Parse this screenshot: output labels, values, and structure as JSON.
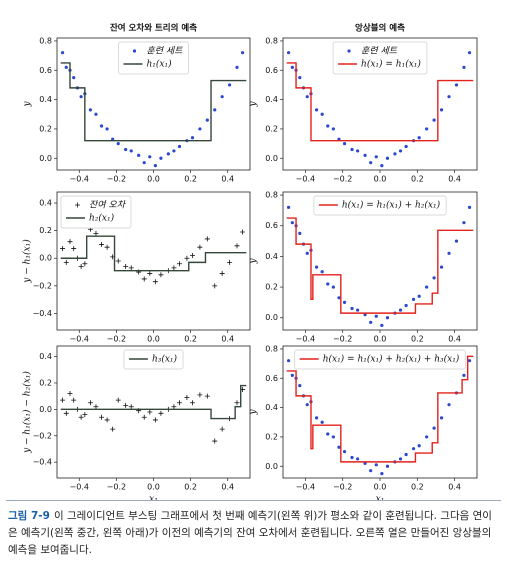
{
  "charts": [
    {
      "chart_data": {
        "type": "scatter",
        "title": "잔여 오차와 트리의 예측",
        "ylabel": "y",
        "legend": "upper center",
        "xlim": [
          -0.52,
          0.52
        ],
        "ylim": [
          -0.08,
          0.82
        ],
        "xticks": [
          {
            "value": -0.4,
            "label": "−0.4"
          },
          {
            "value": -0.2,
            "label": "−0.2"
          },
          {
            "value": 0,
            "label": "0.0"
          },
          0.2,
          0.4
        ],
        "yticks": [
          {
            "value": 0,
            "label": "0.0"
          },
          0.2,
          0.4,
          0.6,
          0.8
        ],
        "series": [
          {
            "name": "훈련 세트",
            "color": "#2a47d0",
            "marker": "o",
            "x": [
              -0.49,
              -0.47,
              -0.45,
              -0.43,
              -0.41,
              -0.39,
              -0.37,
              -0.34,
              -0.31,
              -0.28,
              -0.25,
              -0.22,
              -0.19,
              -0.15,
              -0.12,
              -0.08,
              -0.05,
              -0.02,
              0.01,
              0.04,
              0.08,
              0.11,
              0.14,
              0.18,
              0.21,
              0.25,
              0.29,
              0.33,
              0.37,
              0.41,
              0.45,
              0.48
            ],
            "values": [
              0.72,
              0.62,
              0.6,
              0.55,
              0.48,
              0.42,
              0.44,
              0.33,
              0.3,
              0.22,
              0.2,
              0.13,
              0.1,
              0.06,
              0.05,
              0.02,
              -0.03,
              0.01,
              -0.05,
              0.0,
              0.03,
              0.05,
              0.08,
              0.12,
              0.14,
              0.2,
              0.26,
              0.33,
              0.42,
              0.5,
              0.62,
              0.72
            ]
          },
          {
            "name": "h₁(x₁)",
            "color": "#33473a",
            "x": [
              -0.5,
              -0.45,
              -0.45,
              -0.37,
              -0.37,
              0.31,
              0.31,
              0.5
            ],
            "values": [
              0.65,
              0.65,
              0.48,
              0.48,
              0.12,
              0.12,
              0.53,
              0.53
            ]
          }
        ]
      }
    },
    {
      "chart_data": {
        "type": "scatter",
        "title": "앙상블의 예측",
        "ylabel": "y",
        "legend": "upper center",
        "xlim": [
          -0.52,
          0.52
        ],
        "ylim": [
          -0.08,
          0.82
        ],
        "xticks": [
          {
            "value": -0.4,
            "label": "−0.4"
          },
          {
            "value": -0.2,
            "label": "−0.2"
          },
          {
            "value": 0,
            "label": "0.0"
          },
          0.2,
          0.4
        ],
        "yticks": [
          {
            "value": 0,
            "label": "0.0"
          },
          0.2,
          0.4,
          0.6,
          0.8
        ],
        "series": [
          {
            "name": "훈련 세트",
            "color": "#2a47d0",
            "marker": "o",
            "x": [
              -0.49,
              -0.47,
              -0.45,
              -0.43,
              -0.41,
              -0.39,
              -0.37,
              -0.34,
              -0.31,
              -0.28,
              -0.25,
              -0.22,
              -0.19,
              -0.15,
              -0.12,
              -0.08,
              -0.05,
              -0.02,
              0.01,
              0.04,
              0.08,
              0.11,
              0.14,
              0.18,
              0.21,
              0.25,
              0.29,
              0.33,
              0.37,
              0.41,
              0.45,
              0.48
            ],
            "values": [
              0.72,
              0.62,
              0.6,
              0.55,
              0.48,
              0.42,
              0.44,
              0.33,
              0.3,
              0.22,
              0.2,
              0.13,
              0.1,
              0.06,
              0.05,
              0.02,
              -0.03,
              0.01,
              -0.05,
              0.0,
              0.03,
              0.05,
              0.08,
              0.12,
              0.14,
              0.2,
              0.26,
              0.33,
              0.42,
              0.5,
              0.62,
              0.72
            ]
          },
          {
            "name": "h(x₁) = h₁(x₁)",
            "color": "#e3221c",
            "x": [
              -0.5,
              -0.45,
              -0.45,
              -0.37,
              -0.37,
              0.31,
              0.31,
              0.5
            ],
            "values": [
              0.65,
              0.65,
              0.48,
              0.48,
              0.12,
              0.12,
              0.53,
              0.53
            ]
          }
        ]
      }
    },
    {
      "chart_data": {
        "type": "scatter",
        "ylabel": "y − h₁(x₁)",
        "legend": "upper left",
        "xlim": [
          -0.52,
          0.52
        ],
        "ylim": [
          -0.52,
          0.48
        ],
        "xticks": [
          {
            "value": -0.4,
            "label": "−0.4"
          },
          {
            "value": -0.2,
            "label": "−0.2"
          },
          {
            "value": 0,
            "label": "0.0"
          },
          0.2,
          0.4
        ],
        "yticks": [
          {
            "value": -0.4,
            "label": "−0.4"
          },
          {
            "value": -0.2,
            "label": "−0.2"
          },
          {
            "value": 0,
            "label": "0.0"
          },
          0.2,
          0.4
        ],
        "series": [
          {
            "name": "잔여 오차",
            "color": "#111111",
            "marker": "+",
            "x": [
              -0.49,
              -0.47,
              -0.45,
              -0.43,
              -0.41,
              -0.39,
              -0.37,
              -0.34,
              -0.31,
              -0.28,
              -0.25,
              -0.22,
              -0.19,
              -0.15,
              -0.12,
              -0.08,
              -0.05,
              -0.02,
              0.01,
              0.04,
              0.08,
              0.11,
              0.14,
              0.18,
              0.21,
              0.25,
              0.29,
              0.33,
              0.37,
              0.41,
              0.45,
              0.48
            ],
            "values": [
              0.07,
              -0.03,
              0.12,
              0.07,
              0,
              -0.06,
              -0.04,
              0.21,
              0.18,
              0.1,
              0.08,
              0.01,
              -0.02,
              -0.06,
              -0.07,
              -0.1,
              -0.15,
              -0.11,
              -0.17,
              -0.12,
              -0.09,
              -0.07,
              -0.04,
              0.0,
              0.02,
              0.08,
              0.14,
              -0.2,
              -0.11,
              -0.03,
              0.09,
              0.19
            ]
          },
          {
            "name": "h₂(x₁)",
            "color": "#33473a",
            "x": [
              -0.5,
              -0.36,
              -0.36,
              -0.21,
              -0.21,
              0.19,
              0.19,
              0.28,
              0.28,
              0.5
            ],
            "values": [
              0,
              0,
              0.16,
              0.16,
              -0.09,
              -0.09,
              -0.03,
              -0.03,
              0.04,
              0.04
            ]
          }
        ]
      }
    },
    {
      "chart_data": {
        "type": "scatter",
        "ylabel": "y",
        "legend": "upper center",
        "xlim": [
          -0.52,
          0.52
        ],
        "ylim": [
          -0.08,
          0.82
        ],
        "xticks": [
          {
            "value": -0.4,
            "label": "−0.4"
          },
          {
            "value": -0.2,
            "label": "−0.2"
          },
          {
            "value": 0,
            "label": "0.0"
          },
          0.2,
          0.4
        ],
        "yticks": [
          {
            "value": 0,
            "label": "0.0"
          },
          0.2,
          0.4,
          0.6,
          0.8
        ],
        "series": [
          {
            "color": "#2a47d0",
            "marker": "o",
            "x": [
              -0.49,
              -0.47,
              -0.45,
              -0.43,
              -0.41,
              -0.39,
              -0.37,
              -0.34,
              -0.31,
              -0.28,
              -0.25,
              -0.22,
              -0.19,
              -0.15,
              -0.12,
              -0.08,
              -0.05,
              -0.02,
              0.01,
              0.04,
              0.08,
              0.11,
              0.14,
              0.18,
              0.21,
              0.25,
              0.29,
              0.33,
              0.37,
              0.41,
              0.45,
              0.48
            ],
            "values": [
              0.72,
              0.62,
              0.6,
              0.55,
              0.48,
              0.42,
              0.44,
              0.33,
              0.3,
              0.22,
              0.2,
              0.13,
              0.1,
              0.06,
              0.05,
              0.02,
              -0.03,
              0.01,
              -0.05,
              0.0,
              0.03,
              0.05,
              0.08,
              0.12,
              0.14,
              0.2,
              0.26,
              0.33,
              0.42,
              0.5,
              0.62,
              0.72
            ]
          },
          {
            "name": "h(x₁) = h₁(x₁) + h₂(x₁)",
            "color": "#e3221c",
            "x": [
              -0.5,
              -0.45,
              -0.45,
              -0.37,
              -0.37,
              -0.36,
              -0.36,
              -0.21,
              -0.21,
              0.19,
              0.19,
              0.28,
              0.28,
              0.31,
              0.31,
              0.5
            ],
            "values": [
              0.65,
              0.65,
              0.48,
              0.48,
              0.12,
              0.12,
              0.28,
              0.28,
              0.03,
              0.03,
              0.09,
              0.09,
              0.16,
              0.16,
              0.57,
              0.57
            ]
          }
        ]
      }
    },
    {
      "chart_data": {
        "type": "scatter",
        "ylabel": "y − h₁(x₁) − h₂(x₁)",
        "xlabel": "x₁",
        "legend": "upper center",
        "xlim": [
          -0.52,
          0.52
        ],
        "ylim": [
          -0.52,
          0.48
        ],
        "xticks": [
          {
            "value": -0.4,
            "label": "−0.4"
          },
          {
            "value": -0.2,
            "label": "−0.2"
          },
          {
            "value": 0,
            "label": "0.0"
          },
          0.2,
          0.4
        ],
        "yticks": [
          {
            "value": -0.4,
            "label": "−0.4"
          },
          {
            "value": -0.2,
            "label": "−0.2"
          },
          {
            "value": 0,
            "label": "0.0"
          },
          0.2,
          0.4
        ],
        "series": [
          {
            "color": "#111111",
            "marker": "+",
            "x": [
              -0.49,
              -0.47,
              -0.45,
              -0.43,
              -0.41,
              -0.39,
              -0.37,
              -0.34,
              -0.31,
              -0.28,
              -0.25,
              -0.22,
              -0.19,
              -0.15,
              -0.12,
              -0.08,
              -0.05,
              -0.02,
              0.01,
              0.04,
              0.08,
              0.11,
              0.14,
              0.18,
              0.21,
              0.25,
              0.29,
              0.33,
              0.37,
              0.41,
              0.45,
              0.48
            ],
            "values": [
              0.07,
              -0.03,
              0.12,
              0.07,
              0,
              -0.06,
              -0.04,
              0.05,
              0.02,
              -0.06,
              -0.08,
              -0.15,
              0.07,
              0.03,
              0.02,
              -0.01,
              -0.06,
              -0.02,
              -0.08,
              -0.03,
              0,
              0.02,
              0.05,
              0.09,
              0.05,
              0.11,
              0.1,
              -0.24,
              -0.15,
              -0.07,
              0.05,
              0.15
            ]
          },
          {
            "name": "h₃(x₁)",
            "color": "#33473a",
            "x": [
              -0.5,
              0.31,
              0.31,
              0.44,
              0.44,
              0.47,
              0.47,
              0.5
            ],
            "values": [
              0,
              0,
              -0.07,
              -0.07,
              0.02,
              0.02,
              0.18,
              0.18
            ]
          }
        ]
      }
    },
    {
      "chart_data": {
        "type": "scatter",
        "ylabel": "y",
        "xlabel": "x₁",
        "legend": "upper center",
        "xlim": [
          -0.52,
          0.52
        ],
        "ylim": [
          -0.08,
          0.82
        ],
        "xticks": [
          {
            "value": -0.4,
            "label": "−0.4"
          },
          {
            "value": -0.2,
            "label": "−0.2"
          },
          {
            "value": 0,
            "label": "0.0"
          },
          0.2,
          0.4
        ],
        "yticks": [
          {
            "value": 0,
            "label": "0.0"
          },
          0.2,
          0.4,
          0.6,
          0.8
        ],
        "series": [
          {
            "color": "#2a47d0",
            "marker": "o",
            "x": [
              -0.49,
              -0.47,
              -0.45,
              -0.43,
              -0.41,
              -0.39,
              -0.37,
              -0.34,
              -0.31,
              -0.28,
              -0.25,
              -0.22,
              -0.19,
              -0.15,
              -0.12,
              -0.08,
              -0.05,
              -0.02,
              0.01,
              0.04,
              0.08,
              0.11,
              0.14,
              0.18,
              0.21,
              0.25,
              0.29,
              0.33,
              0.37,
              0.41,
              0.45,
              0.48
            ],
            "values": [
              0.72,
              0.62,
              0.6,
              0.55,
              0.48,
              0.42,
              0.44,
              0.33,
              0.3,
              0.22,
              0.2,
              0.13,
              0.1,
              0.06,
              0.05,
              0.02,
              -0.03,
              0.01,
              -0.05,
              0.0,
              0.03,
              0.05,
              0.08,
              0.12,
              0.14,
              0.2,
              0.26,
              0.33,
              0.42,
              0.5,
              0.62,
              0.72
            ]
          },
          {
            "name": "h(x₁) = h₁(x₁) + h₂(x₁) + h₃(x₁)",
            "color": "#e3221c",
            "x": [
              -0.5,
              -0.45,
              -0.45,
              -0.37,
              -0.37,
              -0.36,
              -0.36,
              -0.21,
              -0.21,
              0.19,
              0.19,
              0.28,
              0.28,
              0.31,
              0.31,
              0.44,
              0.44,
              0.47,
              0.47,
              0.5
            ],
            "values": [
              0.65,
              0.65,
              0.48,
              0.48,
              0.12,
              0.12,
              0.28,
              0.28,
              0.03,
              0.03,
              0.09,
              0.09,
              0.16,
              0.16,
              0.5,
              0.5,
              0.59,
              0.59,
              0.75,
              0.75
            ]
          }
        ]
      }
    }
  ],
  "caption": {
    "label": "그림 7-9",
    "text": "이 그레이디언트 부스팅 그래프에서 첫 번째 예측기(왼쪽 위)가 평소와 같이 훈련됩니다. 그다음 연이은 예측기(왼쪽 중간, 왼쪽 아래)가 이전의 예측기의 잔여 오차에서 훈련됩니다. 오른쪽 열은 만들어진 앙상블의 예측을 보여줍니다."
  }
}
